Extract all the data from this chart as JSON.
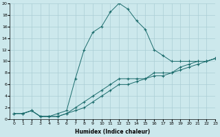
{
  "xlabel": "Humidex (Indice chaleur)",
  "bg_color": "#cce8ec",
  "grid_color": "#aacdd4",
  "line_color": "#1a6b6b",
  "xlim": [
    -0.5,
    23
  ],
  "ylim": [
    0,
    20
  ],
  "xticks": [
    0,
    1,
    2,
    3,
    4,
    5,
    6,
    7,
    8,
    9,
    10,
    11,
    12,
    13,
    14,
    15,
    16,
    17,
    18,
    19,
    20,
    21,
    22,
    23
  ],
  "yticks": [
    0,
    2,
    4,
    6,
    8,
    10,
    12,
    14,
    16,
    18,
    20
  ],
  "line1_x": [
    0,
    1,
    2,
    3,
    4,
    5,
    6,
    7,
    8,
    9,
    10,
    11,
    12,
    13,
    14,
    15,
    16,
    17,
    18,
    19,
    20,
    21,
    22,
    23
  ],
  "line1_y": [
    1,
    1,
    1.5,
    0.5,
    0.5,
    1,
    1.5,
    7,
    12,
    15,
    16,
    18.5,
    20,
    19,
    17,
    15.5,
    12,
    11,
    10,
    10,
    10,
    10,
    10,
    10.5
  ],
  "line2_x": [
    0,
    1,
    2,
    3,
    4,
    5,
    6,
    7,
    8,
    9,
    10,
    11,
    12,
    13,
    14,
    15,
    16,
    17,
    18,
    19,
    20,
    21,
    22,
    23
  ],
  "line2_y": [
    1,
    1,
    1.5,
    0.5,
    0.5,
    0.5,
    1,
    2,
    3,
    4,
    5,
    6,
    7,
    7,
    7,
    7,
    8,
    8,
    8,
    9,
    9.5,
    10,
    10,
    10.5
  ],
  "line3_x": [
    0,
    1,
    2,
    3,
    4,
    5,
    6,
    7,
    8,
    9,
    10,
    11,
    12,
    13,
    14,
    15,
    16,
    17,
    18,
    19,
    20,
    21,
    22,
    23
  ],
  "line3_y": [
    1,
    1,
    1.5,
    0.5,
    0.5,
    0.5,
    1,
    1.5,
    2,
    3,
    4,
    5,
    6,
    6,
    6.5,
    7,
    7.5,
    7.5,
    8,
    8.5,
    9,
    9.5,
    10,
    10.5
  ]
}
